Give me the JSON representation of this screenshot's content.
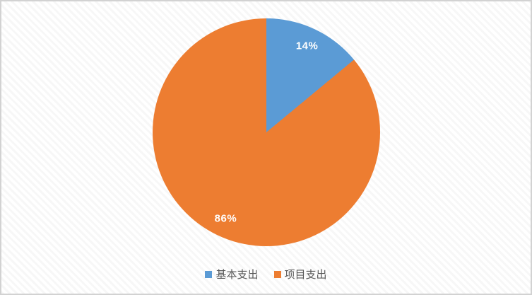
{
  "chart_data": {
    "type": "pie",
    "title": "",
    "slices": [
      {
        "label": "基本支出",
        "value": 14,
        "display": "14%",
        "color": "#5B9BD5"
      },
      {
        "label": "项目支出",
        "value": 86,
        "display": "86%",
        "color": "#ED7D31"
      }
    ],
    "start_angle_deg": 0,
    "direction": "clockwise",
    "legend_position": "bottom",
    "data_label_color": "#FFFFFF",
    "legend_text_color": "#595959"
  }
}
